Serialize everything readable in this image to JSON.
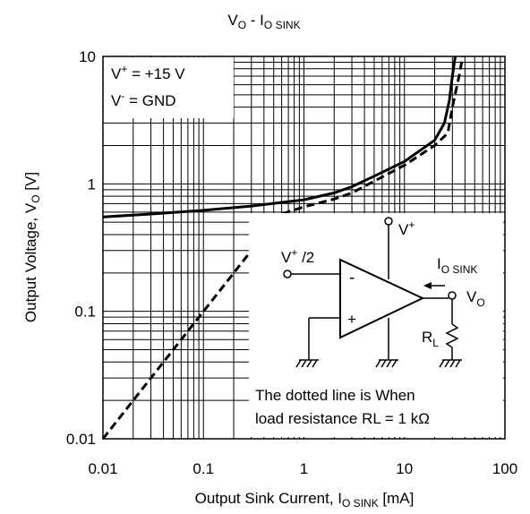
{
  "chart_data": {
    "type": "line",
    "title": {
      "main": "V",
      "sub1": "O",
      "mid": " - I",
      "sub2": "O SINK"
    },
    "xlabel": {
      "main": "Output Sink Current, I",
      "sub": "O SINK",
      "tail": " [mA]"
    },
    "ylabel": {
      "main": "Output Voltage, V",
      "sub": "O",
      "tail": " [V]"
    },
    "x_scale": "log",
    "y_scale": "log",
    "xlim": [
      0.01,
      100
    ],
    "ylim": [
      0.01,
      10
    ],
    "x_ticks": [
      "0.01",
      "0.1",
      "1",
      "10",
      "100"
    ],
    "y_ticks": [
      "0.01",
      "0.1",
      "1",
      "10"
    ],
    "grid": true,
    "conditions": {
      "vplus": {
        "main": "V",
        "sup": "+",
        "tail": " = +15 V"
      },
      "vminus": {
        "main": "V",
        "sup": "-",
        "tail": " = GND"
      }
    },
    "series": [
      {
        "style": "solid",
        "points": [
          [
            0.01,
            0.55
          ],
          [
            0.03,
            0.58
          ],
          [
            0.1,
            0.62
          ],
          [
            0.3,
            0.67
          ],
          [
            1,
            0.75
          ],
          [
            2,
            0.85
          ],
          [
            3,
            0.95
          ],
          [
            5,
            1.15
          ],
          [
            10,
            1.5
          ],
          [
            20,
            2.2
          ],
          [
            25,
            3.0
          ],
          [
            28,
            4.5
          ],
          [
            30,
            7
          ],
          [
            32,
            10
          ]
        ]
      },
      {
        "style": "dashed",
        "points": [
          [
            0.01,
            0.01
          ],
          [
            0.03,
            0.03
          ],
          [
            0.1,
            0.1
          ],
          [
            0.3,
            0.3
          ],
          [
            0.5,
            0.5
          ],
          [
            0.6,
            0.58
          ],
          [
            1,
            0.66
          ],
          [
            2,
            0.76
          ],
          [
            3,
            0.85
          ],
          [
            5,
            1.05
          ],
          [
            10,
            1.4
          ],
          [
            20,
            2.0
          ],
          [
            27,
            2.5
          ],
          [
            30,
            4
          ],
          [
            35,
            7
          ],
          [
            38,
            10
          ]
        ]
      }
    ],
    "annotation": {
      "line1": "The dotted line is When",
      "line2": "load resistance RL = 1 kΩ"
    },
    "circuit": {
      "vplus": {
        "main": "V",
        "sup": "+"
      },
      "vin": {
        "main": "V",
        "sup": "+",
        "tail": " /2"
      },
      "minus": "-",
      "plus": "+",
      "isink": {
        "main": "I",
        "sub": "O SINK"
      },
      "vo": {
        "main": "V",
        "sub": "O"
      },
      "rl": {
        "main": "R",
        "sub": "L"
      }
    }
  }
}
